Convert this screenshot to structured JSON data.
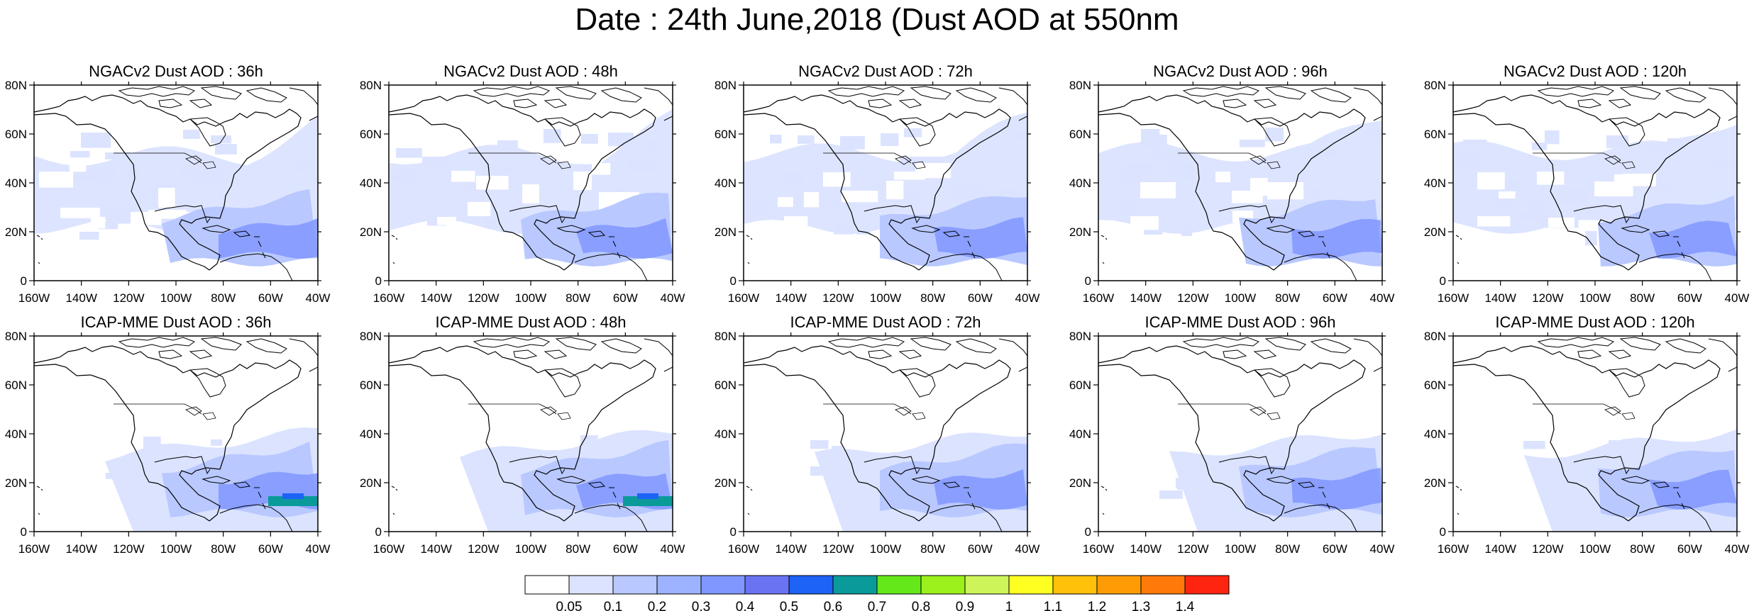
{
  "title": "Date : 24th June,2018 (Dust AOD at 550nm",
  "map": {
    "lon_ticks": [
      "160W",
      "140W",
      "120W",
      "100W",
      "80W",
      "60W",
      "40W"
    ],
    "lat_ticks": [
      "80N",
      "60N",
      "40N",
      "20N",
      "0"
    ],
    "lon_range": [
      -160,
      -40
    ],
    "lat_range": [
      0,
      80
    ]
  },
  "panels": [
    {
      "title": "NGACv2 Dust AOD : 36h",
      "model": "NGACv2",
      "lead": "36h"
    },
    {
      "title": "NGACv2 Dust AOD : 48h",
      "model": "NGACv2",
      "lead": "48h"
    },
    {
      "title": "NGACv2 Dust AOD : 72h",
      "model": "NGACv2",
      "lead": "72h"
    },
    {
      "title": "NGACv2 Dust AOD : 96h",
      "model": "NGACv2",
      "lead": "96h"
    },
    {
      "title": "NGACv2 Dust AOD : 120h",
      "model": "NGACv2",
      "lead": "120h"
    },
    {
      "title": "ICAP-MME Dust AOD : 36h",
      "model": "ICAP-MME",
      "lead": "36h"
    },
    {
      "title": "ICAP-MME Dust AOD : 48h",
      "model": "ICAP-MME",
      "lead": "48h"
    },
    {
      "title": "ICAP-MME Dust AOD : 72h",
      "model": "ICAP-MME",
      "lead": "72h"
    },
    {
      "title": "ICAP-MME Dust AOD : 96h",
      "model": "ICAP-MME",
      "lead": "96h"
    },
    {
      "title": "ICAP-MME Dust AOD : 120h",
      "model": "ICAP-MME",
      "lead": "120h"
    }
  ],
  "colorbar": {
    "labels": [
      "0.05",
      "0.1",
      "0.2",
      "0.3",
      "0.4",
      "0.5",
      "0.6",
      "0.7",
      "0.8",
      "0.9",
      "1",
      "1.1",
      "1.2",
      "1.3",
      "1.4"
    ],
    "colors": [
      "#ffffff",
      "#dbe3ff",
      "#b9c8ff",
      "#9db3ff",
      "#8097ff",
      "#6a74f2",
      "#1d63f5",
      "#0b9a9a",
      "#64e81a",
      "#9cf01c",
      "#cdf55a",
      "#ffff22",
      "#ffc10a",
      "#ff9c05",
      "#ff7a08",
      "#ff2410"
    ]
  },
  "contour_colors": {
    "low": "#dbe3ff",
    "mid": "#b9c8ff",
    "high": "#8097ff",
    "teal": "#0b9a9a"
  }
}
